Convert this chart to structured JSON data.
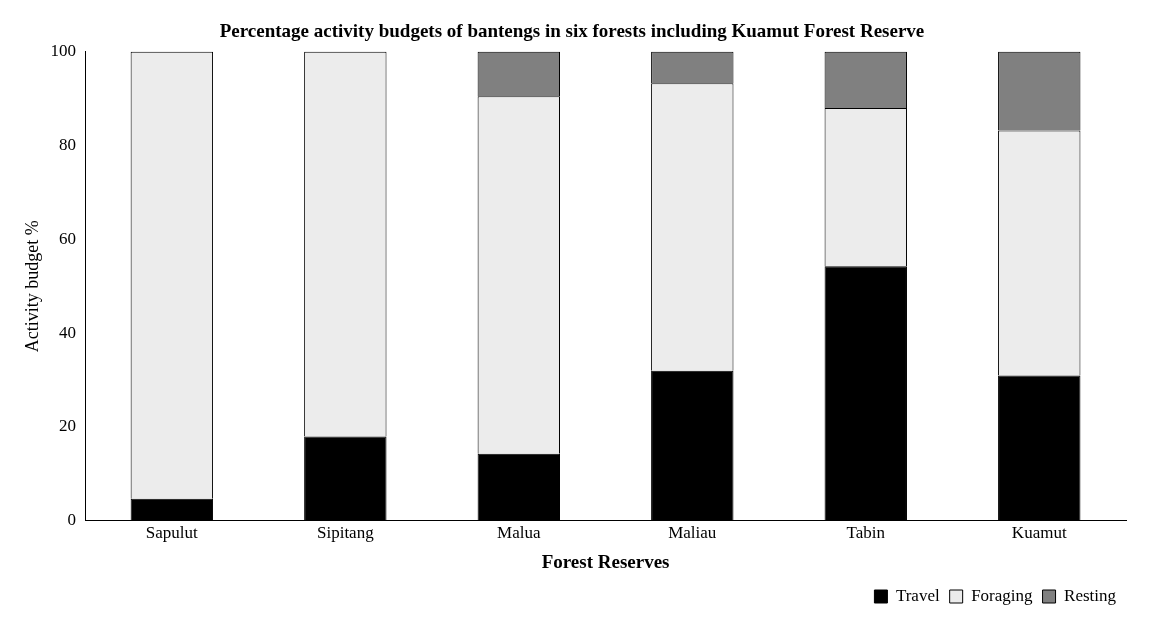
{
  "chart_data": {
    "type": "bar",
    "title": "Percentage activity budgets of bantengs in six forests including Kuamut Forest Reserve",
    "xlabel": "Forest Reserves",
    "ylabel": "Activity budget %",
    "categories": [
      "Sapulut",
      "Sipitang",
      "Malua",
      "Maliau",
      "Tabin",
      "Kuamut"
    ],
    "stacked": true,
    "series": [
      {
        "name": "Travel",
        "color": "#000000",
        "values": [
          4.7,
          18,
          14.3,
          32,
          54.3,
          31
        ]
      },
      {
        "name": "Foraging",
        "color": "#ececec",
        "values": [
          95.3,
          82,
          76.2,
          61.3,
          33.7,
          52.2
        ]
      },
      {
        "name": "Resting",
        "color": "#808080",
        "values": [
          0,
          0,
          9.5,
          6.7,
          12,
          16.8
        ]
      }
    ],
    "ylim": [
      0,
      100
    ],
    "yticks": [
      0,
      20,
      40,
      60,
      80,
      100
    ],
    "grid": false,
    "legend": "bottom right"
  }
}
